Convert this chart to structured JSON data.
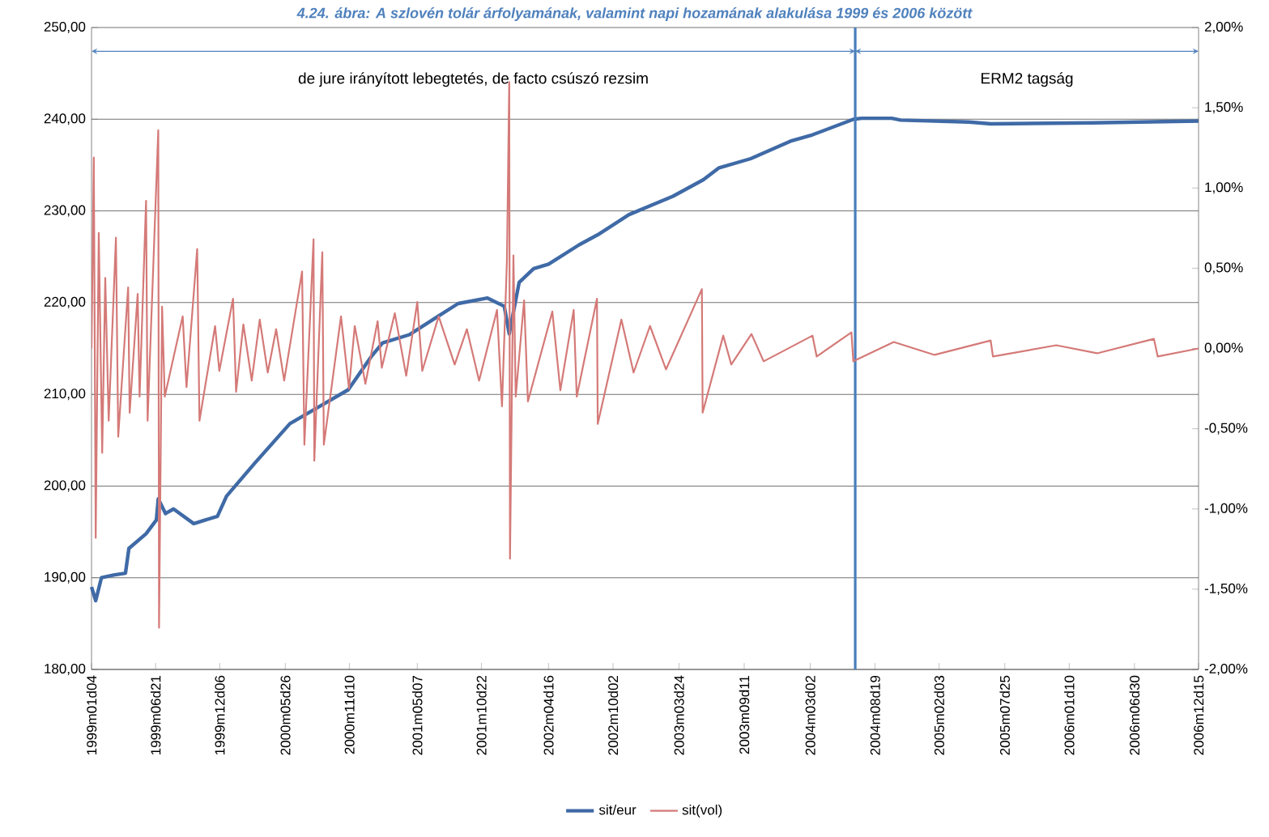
{
  "chart_data": {
    "type": "line",
    "title": "4.24. ábra: A szlovén tolár árfolyamának, valamint napi hozamának alakulása 1999 és 2006 között",
    "xlim": [
      "1999-01-04",
      "2006-12-15"
    ],
    "xticks": [
      {
        "value": "1999-01-04",
        "label": "1999m01d04"
      },
      {
        "value": "1999-06-21",
        "label": "1999m06d21"
      },
      {
        "value": "1999-12-06",
        "label": "1999m12d06"
      },
      {
        "value": "2000-05-26",
        "label": "2000m05d26"
      },
      {
        "value": "2000-11-10",
        "label": "2000m11d10"
      },
      {
        "value": "2001-05-07",
        "label": "2001m05d07"
      },
      {
        "value": "2001-10-22",
        "label": "2001m10d22"
      },
      {
        "value": "2002-04-16",
        "label": "2002m04d16"
      },
      {
        "value": "2002-10-02",
        "label": "2002m10d02"
      },
      {
        "value": "2003-03-24",
        "label": "2003m03d24"
      },
      {
        "value": "2003-09-11",
        "label": "2003m09d11"
      },
      {
        "value": "2004-03-02",
        "label": "2004m03d02"
      },
      {
        "value": "2004-08-19",
        "label": "2004m08d19"
      },
      {
        "value": "2005-02-03",
        "label": "2005m02d03"
      },
      {
        "value": "2005-07-25",
        "label": "2005m07d25"
      },
      {
        "value": "2006-01-10",
        "label": "2006m01d10"
      },
      {
        "value": "2006-06-30",
        "label": "2006m06d30"
      },
      {
        "value": "2006-12-15",
        "label": "2006m12d15"
      }
    ],
    "ylim": [
      180,
      250
    ],
    "yticks": [
      {
        "value": 180,
        "label": "180,00"
      },
      {
        "value": 190,
        "label": "190,00"
      },
      {
        "value": 200,
        "label": "200,00"
      },
      {
        "value": 210,
        "label": "210,00"
      },
      {
        "value": 220,
        "label": "220,00"
      },
      {
        "value": 230,
        "label": "230,00"
      },
      {
        "value": 240,
        "label": "240,00"
      },
      {
        "value": 250,
        "label": "250,00"
      }
    ],
    "y2lim": [
      -2,
      2
    ],
    "y2ticks": [
      {
        "value": -2,
        "label": "-2,00%"
      },
      {
        "value": -1.5,
        "label": "-1,50%"
      },
      {
        "value": -1,
        "label": "-1,00%"
      },
      {
        "value": -0.5,
        "label": "-0,50%"
      },
      {
        "value": 0,
        "label": "0,00%"
      },
      {
        "value": 0.5,
        "label": "0,50%"
      },
      {
        "value": 1,
        "label": "1,00%"
      },
      {
        "value": 1.5,
        "label": "1,50%"
      },
      {
        "value": 2,
        "label": "2,00%"
      }
    ],
    "grid": "y",
    "legend": "bottom",
    "ref_lines": [
      {
        "axis": "x",
        "value": "2004-06-28",
        "color": "#4a7ebb"
      }
    ],
    "annotations": [
      "de jure irányított lebegtetés, de facto csúszó rezsim",
      "ERM2 tagság"
    ],
    "series": [
      {
        "name": "sit/eur",
        "color": "#3f6aa6",
        "x": [
          "1999-01-04",
          "1999-01-15",
          "1999-01-30",
          "1999-03-03",
          "1999-04-03",
          "1999-04-12",
          "1999-05-27",
          "1999-06-23",
          "1999-06-28",
          "1999-07-17",
          "1999-08-07",
          "1999-09-29",
          "1999-11-30",
          "1999-12-24",
          "2000-03-07",
          "2000-06-07",
          "2000-08-08",
          "2000-11-07",
          "2001-01-06",
          "2001-02-05",
          "2001-04-16",
          "2001-06-30",
          "2001-08-22",
          "2001-11-07",
          "2001-12-21",
          "2002-01-03",
          "2002-01-29",
          "2002-03-08",
          "2002-04-16",
          "2002-07-05",
          "2002-08-23",
          "2002-11-13",
          "2003-03-08",
          "2003-05-27",
          "2003-07-07",
          "2003-09-28",
          "2004-01-10",
          "2004-03-08",
          "2004-06-24",
          "2004-07-15",
          "2004-10-02",
          "2004-10-25",
          "2005-04-22",
          "2005-06-19",
          "2006-03-12",
          "2006-12-15"
        ],
        "values": [
          189.0,
          187.5,
          190.0,
          190.3,
          190.5,
          193.2,
          194.8,
          196.3,
          198.6,
          197.0,
          197.5,
          195.9,
          196.7,
          198.9,
          202.5,
          206.8,
          208.3,
          210.5,
          214.1,
          215.6,
          216.5,
          218.5,
          219.9,
          220.5,
          219.6,
          216.6,
          222.2,
          223.7,
          224.2,
          226.3,
          227.4,
          229.6,
          231.6,
          233.4,
          234.7,
          235.7,
          237.6,
          238.3,
          240.0,
          240.1,
          240.1,
          239.9,
          239.7,
          239.5,
          239.6,
          239.8
        ]
      },
      {
        "name": "sit(vol)",
        "color": "#d47a78",
        "axis": "y2",
        "x": [
          "1999-01-04",
          "1999-01-10",
          "1999-01-15",
          "1999-01-23",
          "1999-02-01",
          "1999-02-09",
          "1999-02-18",
          "1999-03-09",
          "1999-03-15",
          "1999-04-10",
          "1999-04-14",
          "1999-05-05",
          "1999-05-10",
          "1999-05-27",
          "1999-05-31",
          "1999-06-28",
          "1999-06-30",
          "1999-07-08",
          "1999-07-15",
          "1999-08-31",
          "1999-09-10",
          "1999-10-08",
          "1999-10-14",
          "1999-11-24",
          "1999-12-05",
          "2000-01-10",
          "2000-01-18",
          "2000-02-06",
          "2000-02-28",
          "2000-03-20",
          "2000-04-10",
          "2000-05-02",
          "2000-05-23",
          "2000-07-09",
          "2000-07-15",
          "2000-08-08",
          "2000-08-10",
          "2000-08-31",
          "2000-09-04",
          "2000-10-19",
          "2000-11-09",
          "2000-11-24",
          "2000-12-22",
          "2001-01-23",
          "2001-02-03",
          "2001-03-09",
          "2001-04-08",
          "2001-05-07",
          "2001-05-20",
          "2001-07-02",
          "2001-08-13",
          "2001-09-14",
          "2001-10-16",
          "2001-12-02",
          "2001-12-15",
          "2001-12-28",
          "2002-01-03",
          "2002-01-05",
          "2002-01-14",
          "2002-01-20",
          "2002-02-11",
          "2002-02-21",
          "2002-04-26",
          "2002-05-17",
          "2002-06-21",
          "2002-06-29",
          "2002-08-21",
          "2002-08-23",
          "2002-10-24",
          "2002-11-25",
          "2003-01-07",
          "2003-02-18",
          "2003-05-23",
          "2003-05-25",
          "2003-07-18",
          "2003-08-08",
          "2003-09-30",
          "2003-11-01",
          "2004-03-08",
          "2004-03-19",
          "2004-06-18",
          "2004-06-23",
          "2004-10-07",
          "2005-01-22",
          "2005-06-18",
          "2005-06-24",
          "2005-12-07",
          "2006-03-24",
          "2006-08-20",
          "2006-08-30",
          "2006-12-15"
        ],
        "values": [
          0,
          1.19,
          -1.18,
          0.72,
          -0.65,
          0.44,
          -0.45,
          0.69,
          -0.55,
          0.38,
          -0.4,
          0.34,
          -0.3,
          0.92,
          -0.45,
          1.36,
          -1.74,
          0.26,
          -0.3,
          0.2,
          -0.24,
          0.62,
          -0.45,
          0.14,
          -0.14,
          0.31,
          -0.27,
          0.15,
          -0.2,
          0.18,
          -0.15,
          0.12,
          -0.2,
          0.48,
          -0.6,
          0.68,
          -0.7,
          0.6,
          -0.6,
          0.2,
          -0.25,
          0.14,
          -0.22,
          0.17,
          -0.12,
          0.22,
          -0.17,
          0.29,
          -0.14,
          0.2,
          -0.1,
          0.12,
          -0.2,
          0.24,
          -0.36,
          0.55,
          1.66,
          -1.31,
          0.58,
          -0.3,
          0.3,
          -0.33,
          0.23,
          -0.26,
          0.24,
          -0.3,
          0.31,
          -0.47,
          0.18,
          -0.15,
          0.14,
          -0.13,
          0.37,
          -0.4,
          0.08,
          -0.1,
          0.09,
          -0.08,
          0.08,
          -0.05,
          0.1,
          -0.08,
          0.04,
          -0.04,
          0.05,
          -0.05,
          0.02,
          -0.03,
          0.06,
          -0.05,
          0
        ]
      }
    ]
  }
}
